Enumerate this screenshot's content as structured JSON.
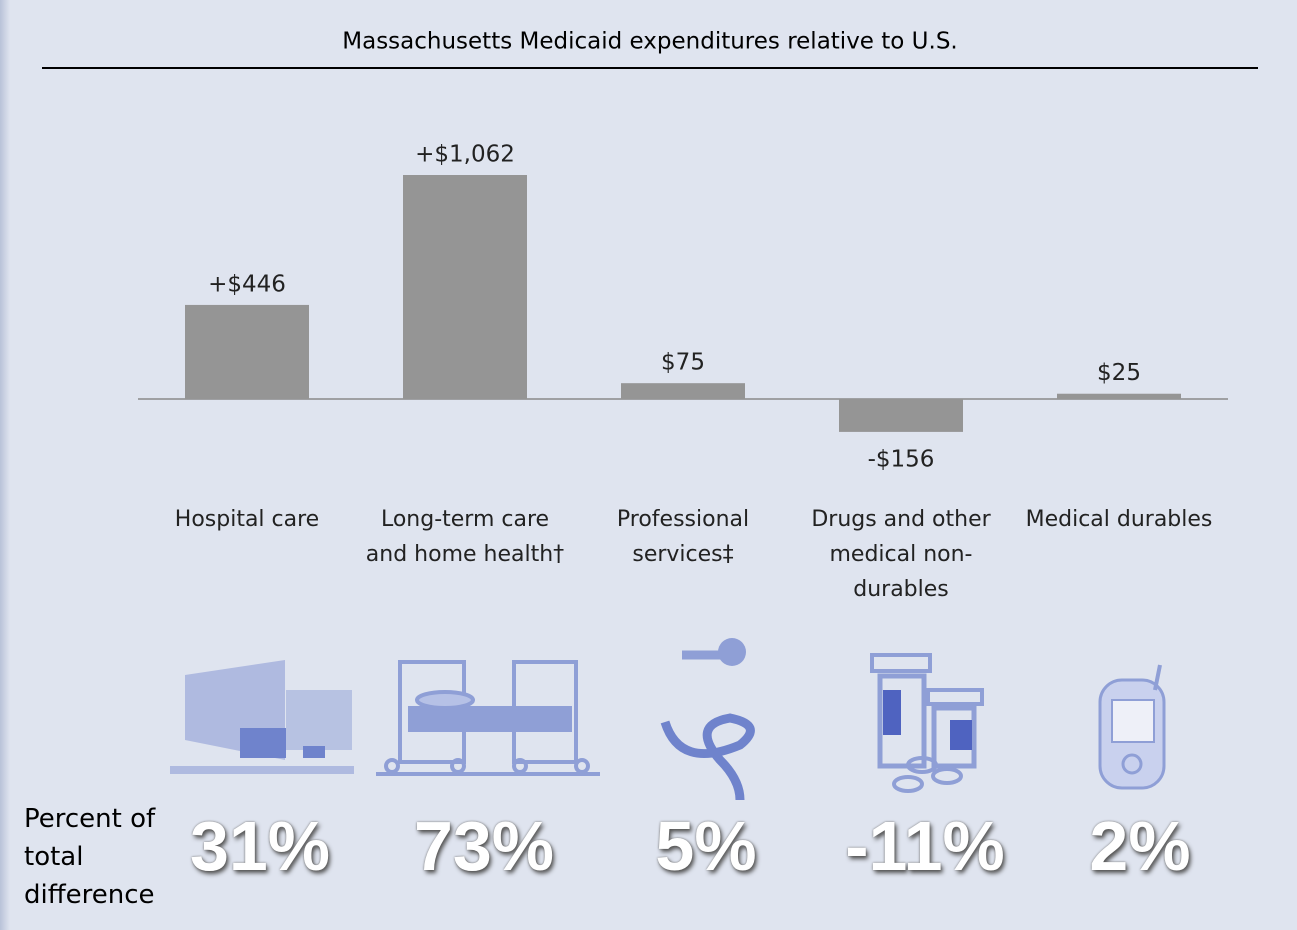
{
  "chart_data": {
    "type": "bar",
    "title": "Massachusetts Medicaid expenditures relative to U.S.",
    "categories": [
      "Hospital care",
      "Long-term care and home health†",
      "Professional services‡",
      "Drugs and other medical non-durables",
      "Medical durables"
    ],
    "values": [
      446,
      1062,
      75,
      -156,
      25
    ],
    "value_labels": [
      "+$446",
      "+$1,062",
      "$75",
      "-$156",
      "$25"
    ],
    "color": "#959595",
    "percent_of_total": {
      "label": "Percent of total difference",
      "values": [
        "31%",
        "73%",
        "5%",
        "-11%",
        "2%"
      ]
    }
  }
}
